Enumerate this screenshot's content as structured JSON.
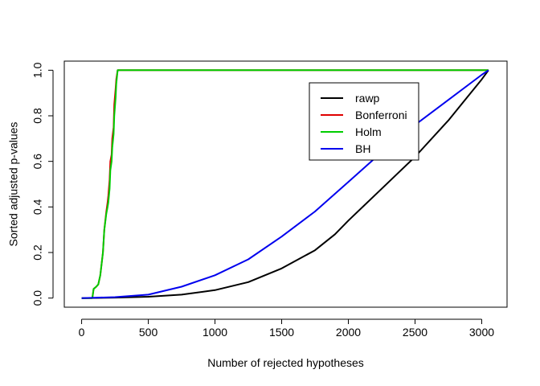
{
  "chart_data": {
    "type": "line",
    "xlabel": "Number of rejected hypotheses",
    "ylabel": "Sorted adjusted p-values",
    "xlim": [
      -130,
      3190
    ],
    "ylim": [
      -0.04,
      1.04
    ],
    "x_ticks": [
      0,
      500,
      1000,
      1500,
      2000,
      2500,
      3000
    ],
    "x_tick_labels": [
      "0",
      "500",
      "1000",
      "1500",
      "2000",
      "2500",
      "3000"
    ],
    "y_ticks": [
      0.0,
      0.2,
      0.4,
      0.6,
      0.8,
      1.0
    ],
    "y_tick_labels": [
      "0.0",
      "0.2",
      "0.4",
      "0.6",
      "0.8",
      "1.0"
    ],
    "grid": false,
    "legend_position": "top-right",
    "legend": [
      {
        "label": "rawp",
        "color": "#000000"
      },
      {
        "label": "Bonferroni",
        "color": "#DF0000"
      },
      {
        "label": "Holm",
        "color": "#00CD00"
      },
      {
        "label": "BH",
        "color": "#0000EE"
      }
    ],
    "series": [
      {
        "name": "rawp",
        "color": "#000000",
        "x": [
          0,
          250,
          500,
          750,
          1000,
          1250,
          1500,
          1750,
          1900,
          2000,
          2250,
          2500,
          2750,
          3000,
          3051
        ],
        "y": [
          0.0,
          0.002,
          0.006,
          0.015,
          0.035,
          0.07,
          0.13,
          0.21,
          0.28,
          0.34,
          0.48,
          0.62,
          0.78,
          0.96,
          1.0
        ]
      },
      {
        "name": "Bonferroni",
        "color": "#DF0000",
        "x": [
          0,
          80,
          90,
          110,
          125,
          140,
          160,
          170,
          185,
          195,
          200,
          210,
          215,
          225,
          230,
          240,
          245,
          255,
          260,
          270,
          3051
        ],
        "y": [
          0.0,
          0.0,
          0.04,
          0.05,
          0.06,
          0.1,
          0.2,
          0.3,
          0.38,
          0.42,
          0.45,
          0.52,
          0.6,
          0.63,
          0.7,
          0.75,
          0.85,
          0.92,
          0.96,
          1.0,
          1.0
        ]
      },
      {
        "name": "Holm",
        "color": "#00CD00",
        "x": [
          0,
          80,
          90,
          110,
          125,
          140,
          160,
          170,
          185,
          195,
          200,
          210,
          215,
          225,
          230,
          240,
          245,
          255,
          260,
          270,
          3051
        ],
        "y": [
          0.0,
          0.0,
          0.04,
          0.05,
          0.06,
          0.1,
          0.2,
          0.3,
          0.37,
          0.4,
          0.42,
          0.48,
          0.56,
          0.6,
          0.66,
          0.72,
          0.8,
          0.88,
          0.94,
          1.0,
          1.0
        ]
      },
      {
        "name": "BH",
        "color": "#0000EE",
        "x": [
          0,
          250,
          500,
          750,
          1000,
          1250,
          1500,
          1750,
          2000,
          2250,
          2500,
          2750,
          3000,
          3051
        ],
        "y": [
          0.0,
          0.004,
          0.015,
          0.05,
          0.1,
          0.17,
          0.27,
          0.38,
          0.51,
          0.64,
          0.76,
          0.87,
          0.98,
          1.0
        ]
      }
    ]
  }
}
